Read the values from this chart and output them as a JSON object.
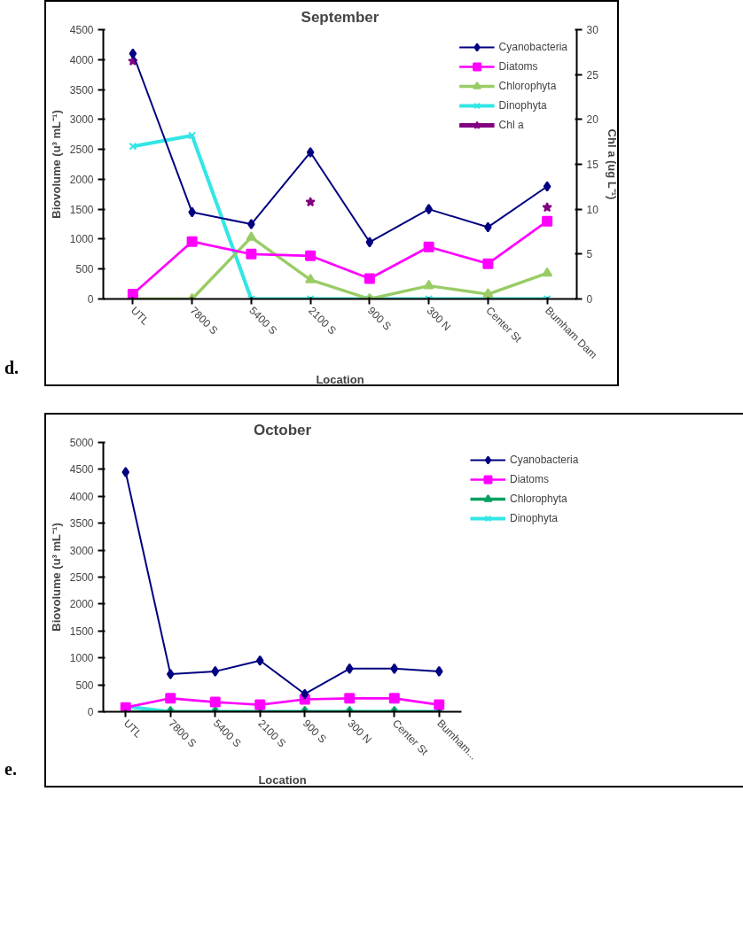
{
  "chart_data": [
    {
      "type": "line",
      "title": "September",
      "xlabel": "Location",
      "ylabel": "Biovolume (u³ mL⁻¹)",
      "y2label": "Chl a (ug L⁻¹)",
      "annotations": [
        "d."
      ],
      "categories": [
        "UTL",
        "7800 S",
        "5400 S",
        "2100 S",
        "900 S",
        "300 N",
        "Center St",
        "Bumham Dam"
      ],
      "series": [
        {
          "name": "Cyanobacteria",
          "color": "#000080",
          "marker": "diamond",
          "values": [
            4100,
            1450,
            1250,
            2450,
            950,
            1500,
            1200,
            1880
          ]
        },
        {
          "name": "Diatoms",
          "color": "#ff00ff",
          "marker": "square",
          "values": [
            80,
            960,
            750,
            720,
            340,
            870,
            590,
            1300
          ]
        },
        {
          "name": "Chlorophyta",
          "color": "#99cc66",
          "marker": "triangle",
          "values": [
            0,
            0,
            1030,
            320,
            0,
            220,
            80,
            430
          ]
        },
        {
          "name": "Dinophyta",
          "color": "#33e6e6",
          "marker": "cross",
          "values": [
            2550,
            2730,
            0,
            0,
            0,
            0,
            0,
            0
          ]
        },
        {
          "name": "Chl a",
          "color": "#800080",
          "marker": "star",
          "axis": "y2",
          "values": [
            26.5,
            null,
            null,
            10.8,
            null,
            null,
            null,
            10.2
          ]
        }
      ],
      "ylim": [
        0,
        4500
      ],
      "yticks": [
        0,
        500,
        1000,
        1500,
        2000,
        2500,
        3000,
        3500,
        4000,
        4500
      ],
      "y2lim": [
        0,
        30
      ],
      "y2ticks": [
        0,
        5,
        10,
        15,
        20,
        25,
        30
      ],
      "legend": "top right",
      "grid": false
    },
    {
      "type": "line",
      "title": "October",
      "xlabel": "Location",
      "ylabel": "Biovolume (u³ mL⁻¹)",
      "annotations": [
        "e."
      ],
      "categories": [
        "UTL",
        "7800 S",
        "5400 S",
        "2100 S",
        "900 S",
        "300 N",
        "Center St",
        "Bumham..."
      ],
      "series": [
        {
          "name": "Cyanobacteria",
          "color": "#000080",
          "marker": "diamond",
          "values": [
            4450,
            700,
            750,
            950,
            330,
            800,
            800,
            750
          ]
        },
        {
          "name": "Diatoms",
          "color": "#ff00ff",
          "marker": "square",
          "values": [
            80,
            250,
            180,
            130,
            230,
            250,
            250,
            130
          ]
        },
        {
          "name": "Chlorophyta",
          "color": "#00a060",
          "marker": "triangle",
          "values": [
            0,
            0,
            0,
            0,
            0,
            0,
            0,
            0
          ]
        },
        {
          "name": "Dinophyta",
          "color": "#33e6e6",
          "marker": "cross",
          "values": [
            100,
            0,
            0,
            0,
            0,
            0,
            0,
            0
          ]
        }
      ],
      "ylim": [
        0,
        5000
      ],
      "yticks": [
        0,
        500,
        1000,
        1500,
        2000,
        2500,
        3000,
        3500,
        4000,
        4500,
        5000
      ],
      "legend": "right",
      "grid": false
    }
  ]
}
